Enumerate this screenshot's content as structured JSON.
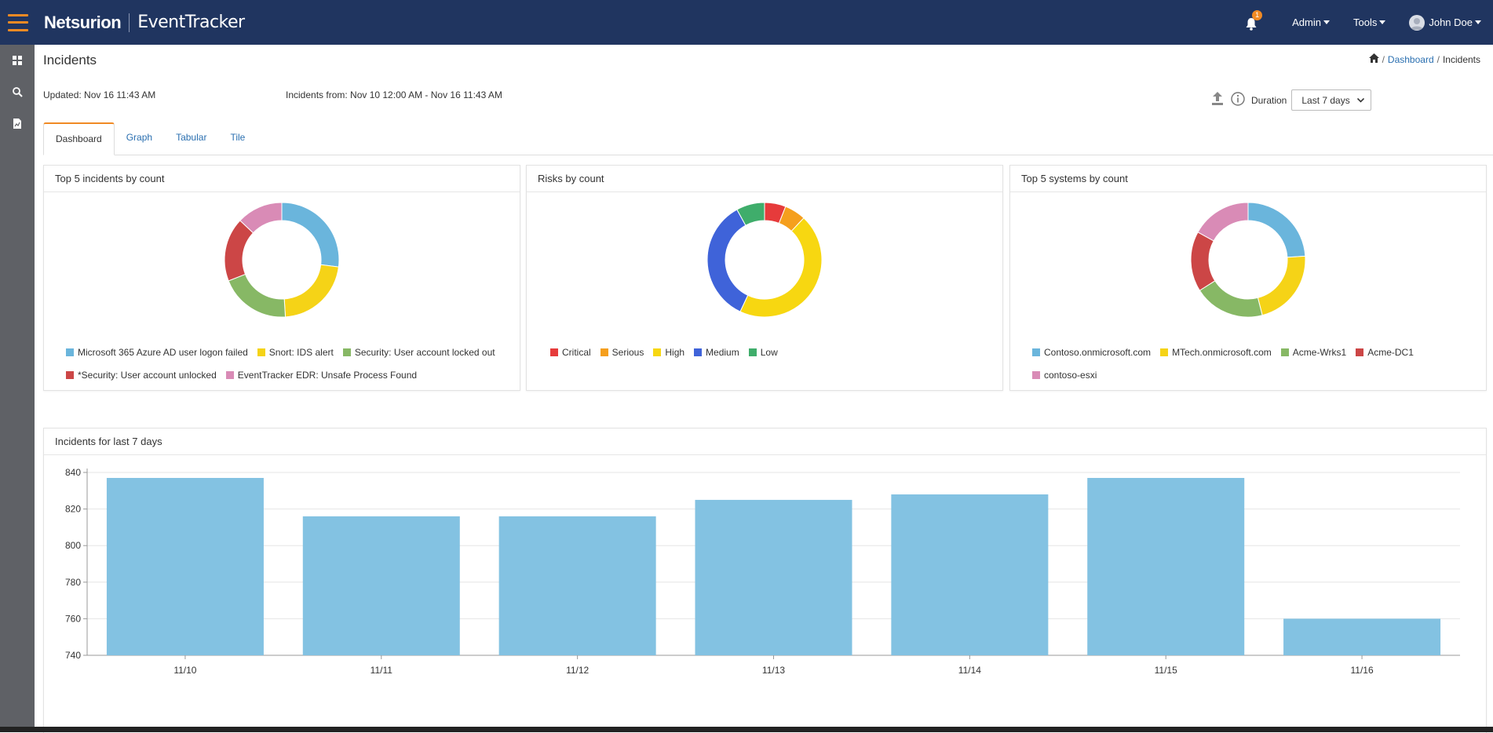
{
  "header": {
    "logo_text": "Netsurion",
    "product_name": "EventTracker",
    "notification_count": "1",
    "menus": [
      "Admin",
      "Tools"
    ],
    "user_name": "John Doe"
  },
  "sidebar": {
    "icons": [
      "dashboard-icon",
      "search-icon",
      "report-icon"
    ]
  },
  "page": {
    "title": "Incidents",
    "breadcrumb": {
      "home": "home-icon",
      "link": "Dashboard",
      "current": "Incidents",
      "sep1": "/",
      "sep2": "/"
    },
    "updated": "Updated: Nov 16 11:43 AM",
    "range": "Incidents from: Nov 10 12:00 AM - Nov 16 11:43 AM",
    "duration_label": "Duration",
    "duration_value": "Last 7 days"
  },
  "tabs": [
    "Dashboard",
    "Graph",
    "Tabular",
    "Tile"
  ],
  "panels": {
    "incidents": {
      "title": "Top 5 incidents by count",
      "legend": [
        "Microsoft 365 Azure AD user logon failed",
        "Snort: IDS alert",
        "Security: User account locked out",
        "*Security: User account unlocked",
        "EventTracker EDR: Unsafe Process Found"
      ]
    },
    "risks": {
      "title": "Risks by count",
      "legend": [
        "Critical",
        "Serious",
        "High",
        "Medium",
        "Low"
      ]
    },
    "systems": {
      "title": "Top 5 systems by count",
      "legend": [
        "Contoso.onmicrosoft.com",
        "MTech.onmicrosoft.com",
        "Acme-Wrks1",
        "Acme-DC1",
        "contoso-esxi"
      ]
    },
    "last7": {
      "title": "Incidents for last 7 days"
    }
  },
  "chart_data": [
    {
      "type": "pie",
      "title": "Top 5 incidents by count",
      "labels": [
        "Microsoft 365 Azure AD user logon failed",
        "Snort: IDS alert",
        "Security: User account locked out",
        "*Security: User account unlocked",
        "EventTracker EDR: Unsafe Process Found"
      ],
      "values": [
        27,
        22,
        20,
        18,
        13
      ],
      "colors": [
        "#6ab5dc",
        "#f5d317",
        "#87b865",
        "#cc4646",
        "#d98bb6"
      ],
      "donut": true
    },
    {
      "type": "pie",
      "title": "Risks by count",
      "labels": [
        "Critical",
        "Serious",
        "High",
        "Medium",
        "Low"
      ],
      "values": [
        6,
        6,
        45,
        35,
        8
      ],
      "colors": [
        "#e63b3b",
        "#f59f1d",
        "#f7d711",
        "#3f63d9",
        "#3fad6b"
      ],
      "donut": true
    },
    {
      "type": "pie",
      "title": "Top 5 systems by count",
      "labels": [
        "Contoso.onmicrosoft.com",
        "MTech.onmicrosoft.com",
        "Acme-Wrks1",
        "Acme-DC1",
        "contoso-esxi"
      ],
      "values": [
        24,
        22,
        20,
        17,
        17
      ],
      "colors": [
        "#6ab5dc",
        "#f5d317",
        "#87b865",
        "#cc4646",
        "#d98bb6"
      ],
      "donut": true
    },
    {
      "type": "bar",
      "title": "Incidents for last 7 days",
      "categories": [
        "11/10",
        "11/11",
        "11/12",
        "11/13",
        "11/14",
        "11/15",
        "11/16"
      ],
      "values": [
        837,
        816,
        816,
        825,
        828,
        837,
        760
      ],
      "ylim": [
        740,
        840
      ],
      "yticks": [
        740,
        760,
        780,
        800,
        820,
        840
      ],
      "color": "#83c2e2",
      "grid": true
    }
  ]
}
